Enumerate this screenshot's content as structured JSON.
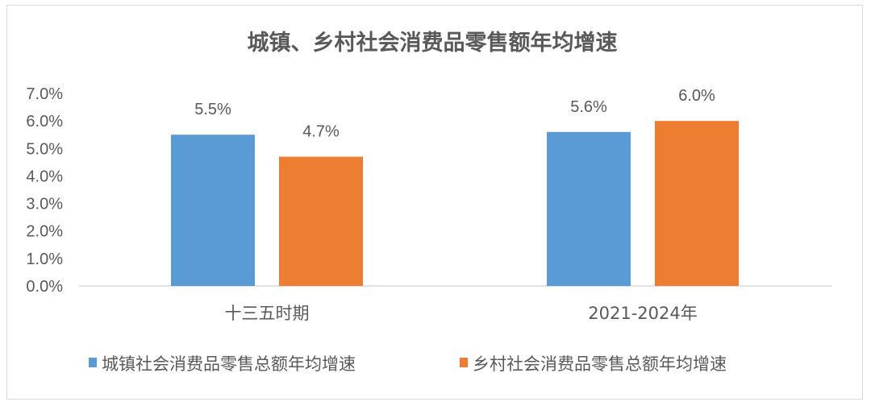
{
  "chart_data": {
    "type": "bar",
    "title": "城镇、乡村社会消费品零售额年均增速",
    "categories": [
      "十三五时期",
      "2021-2024年"
    ],
    "series": [
      {
        "name": "城镇社会消费品零售总额年均增速",
        "values": [
          5.5,
          5.6
        ],
        "labels": [
          "5.5%",
          "5.6%"
        ],
        "color": "#5b9bd5"
      },
      {
        "name": "乡村社会消费品零售总额年均增速",
        "values": [
          4.7,
          6.0
        ],
        "labels": [
          "4.7%",
          "6.0%"
        ],
        "color": "#ed7d31"
      }
    ],
    "ylim": [
      0,
      7
    ],
    "yticks": [
      0,
      1,
      2,
      3,
      4,
      5,
      6,
      7
    ],
    "ytick_labels": [
      "0.0%",
      "1.0%",
      "2.0%",
      "3.0%",
      "4.0%",
      "5.0%",
      "6.0%",
      "7.0%"
    ],
    "grid": false,
    "legend_position": "bottom",
    "xlabel": "",
    "ylabel": ""
  }
}
